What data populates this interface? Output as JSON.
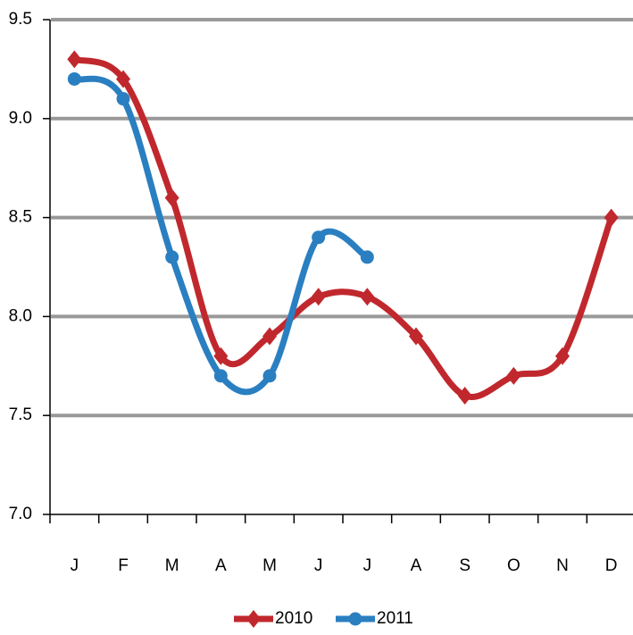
{
  "chart_data": {
    "type": "line",
    "categories": [
      "J",
      "F",
      "M",
      "A",
      "M",
      "J",
      "J",
      "A",
      "S",
      "O",
      "N",
      "D"
    ],
    "series": [
      {
        "name": "2010",
        "color": "#c0282d",
        "marker": "diamond",
        "values": [
          9.3,
          9.2,
          8.6,
          7.8,
          7.9,
          8.1,
          8.1,
          7.9,
          7.6,
          7.7,
          7.8,
          8.5
        ]
      },
      {
        "name": "2011",
        "color": "#2a7fc1",
        "marker": "circle",
        "values": [
          9.2,
          9.1,
          8.3,
          7.7,
          7.7,
          8.4,
          8.3,
          null,
          null,
          null,
          null,
          null
        ]
      }
    ],
    "ylim": [
      7,
      9.5
    ],
    "yticks": [
      {
        "value": 7,
        "label": "7.0"
      },
      7.5,
      {
        "value": 8,
        "label": "8.0"
      },
      8.5,
      {
        "value": 9,
        "label": "9.0"
      },
      9.5
    ],
    "grid": true,
    "legend": "bottom"
  }
}
